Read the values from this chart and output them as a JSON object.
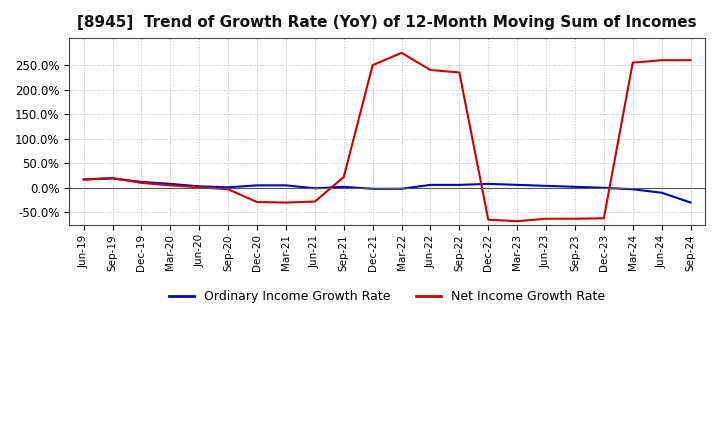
{
  "title": "[8945]  Trend of Growth Rate (YoY) of 12-Month Moving Sum of Incomes",
  "title_fontsize": 11,
  "background_color": "#ffffff",
  "grid_color": "#bbbbbb",
  "x_labels": [
    "Jun-19",
    "Sep-19",
    "Dec-19",
    "Mar-20",
    "Jun-20",
    "Sep-20",
    "Dec-20",
    "Mar-21",
    "Jun-21",
    "Sep-21",
    "Dec-21",
    "Mar-22",
    "Jun-22",
    "Sep-22",
    "Dec-22",
    "Mar-23",
    "Jun-23",
    "Sep-23",
    "Dec-23",
    "Mar-24",
    "Jun-24",
    "Sep-24"
  ],
  "ordinary_income": [
    0.17,
    0.19,
    0.12,
    0.08,
    0.03,
    0.01,
    0.05,
    0.05,
    -0.01,
    0.02,
    -0.02,
    -0.02,
    0.06,
    0.06,
    0.08,
    0.06,
    0.04,
    0.02,
    0.0,
    -0.03,
    -0.1,
    -0.3
  ],
  "net_income": [
    0.17,
    0.2,
    0.1,
    0.05,
    0.01,
    -0.03,
    -0.29,
    -0.3,
    -0.28,
    0.22,
    2.5,
    2.75,
    2.4,
    2.35,
    -0.65,
    -0.68,
    -0.63,
    -0.63,
    -0.62,
    2.55,
    2.6,
    2.6
  ],
  "ordinary_color": "#0000cc",
  "net_color": "#cc0000",
  "legend_labels": [
    "Ordinary Income Growth Rate",
    "Net Income Growth Rate"
  ],
  "yticks": [
    -0.5,
    0.0,
    0.5,
    1.0,
    1.5,
    2.0,
    2.5
  ],
  "ytick_labels": [
    "-50.0%",
    "0.0%",
    "50.0%",
    "100.0%",
    "150.0%",
    "200.0%",
    "250.0%"
  ],
  "ylim": [
    -0.75,
    3.05
  ]
}
